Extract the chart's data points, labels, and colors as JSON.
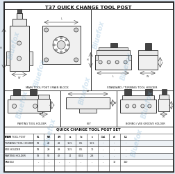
{
  "title": "T37 QUICK CHANGE TOOL POST",
  "bg_color": "#dde6ef",
  "border_color": "#444444",
  "watermark_color": "#7aafd4",
  "watermark_alpha": 0.3,
  "sections": [
    {
      "label": "MAIN TOOL POST / MAIN BLOCK"
    },
    {
      "label": "STANDARD / TURNING TOOL HOLDER"
    },
    {
      "label": "PARTING TOOL HOLDER"
    },
    {
      "label": "KEY"
    },
    {
      "label": "BORING / VEE GROOVE HOLDER"
    }
  ],
  "table_title": "QUICK CHANGE TOOL POST SET",
  "table_headers": [
    "ITEM",
    "L",
    "W",
    "H",
    "a",
    "b",
    "c",
    "a",
    "d",
    "L1"
  ],
  "table_rows": [
    [
      "MAIN TOOL POST",
      "58",
      "58",
      "47",
      "-",
      "-",
      "-",
      "11.1",
      "-",
      "-"
    ],
    [
      "TURNING TOOL HOLDER",
      "58",
      "29",
      "29",
      "14.5",
      "0.5",
      "10.5",
      "-",
      "-",
      "-"
    ],
    [
      "VEE HOLDER",
      "58",
      "29",
      "29",
      "14.5",
      "0.5",
      "10",
      "-",
      "-",
      "-"
    ],
    [
      "PARTING HOLDER",
      "58",
      "58",
      "42",
      "14",
      "0.02",
      "2.8",
      "-",
      "-",
      "-"
    ],
    [
      "HANDLE",
      "-",
      "-",
      "-",
      "-",
      "-",
      "-",
      "-",
      "10",
      "110"
    ]
  ],
  "lc": "#333333",
  "fc_light": "#f5f5f5",
  "fc_dark": "#222222"
}
